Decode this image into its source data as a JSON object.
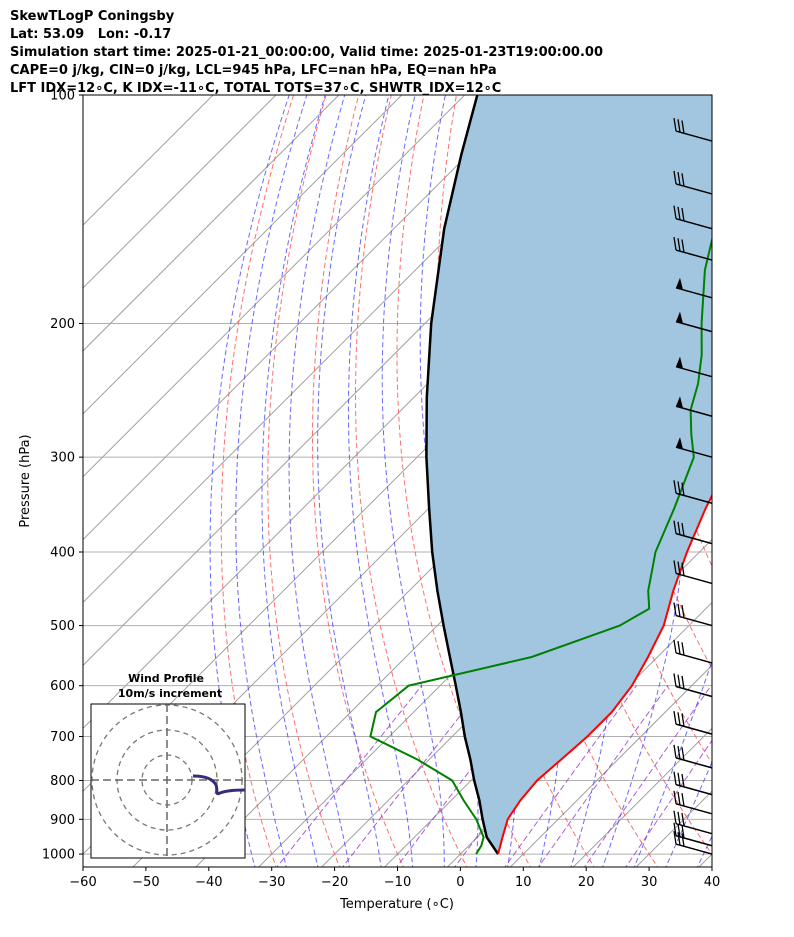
{
  "header": {
    "line1": "SkewTLogP Coningsby",
    "line2": "Lat: 53.09   Lon: -0.17",
    "line3": "Simulation start time: 2025-01-21_00:00:00, Valid time: 2025-01-23T19:00:00.00",
    "line4": "CAPE=0 j/kg, CIN=0 j/kg, LCL=945 hPa, LFC=nan hPa, EQ=nan hPa",
    "line5": "LFT IDX=12∘C, K IDX=-11∘C, TOTAL TOTS=37∘C, SHWTR_IDX=12∘C"
  },
  "chart_data": {
    "type": "line",
    "skew": "skew-T log-p",
    "xlabel": "Temperature (∘C)",
    "ylabel": "Pressure (hPa)",
    "xlim": [
      -60,
      40
    ],
    "ylim": [
      1040,
      100
    ],
    "y_scale": "log",
    "x_ticks": [
      -60,
      -50,
      -40,
      -30,
      -20,
      -10,
      0,
      10,
      20,
      30,
      40
    ],
    "y_ticks": [
      100,
      200,
      300,
      400,
      500,
      600,
      700,
      800,
      900,
      1000
    ],
    "grid": true,
    "colors": {
      "temperature": "#ff0000",
      "dewpoint": "#008000",
      "parcel": "#000000",
      "shade": "#a2c6e0",
      "dry_adiabats": "#ff5555",
      "moist_adiabats": "#4444ff",
      "mixing_ratio": "#9933cc",
      "skew_isotherms": "#a0a0a0"
    },
    "series": [
      {
        "key": "temperature",
        "points": [
          [
            1000,
            6
          ],
          [
            950,
            4
          ],
          [
            900,
            2
          ],
          [
            850,
            1
          ],
          [
            800,
            0.5
          ],
          [
            750,
            1
          ],
          [
            700,
            1.5
          ],
          [
            650,
            1.5
          ],
          [
            600,
            0.5
          ],
          [
            550,
            -1.5
          ],
          [
            500,
            -4
          ],
          [
            450,
            -8
          ],
          [
            400,
            -12
          ],
          [
            350,
            -16
          ],
          [
            300,
            -20
          ],
          [
            280,
            -23
          ],
          [
            260,
            -26
          ],
          [
            240,
            -30
          ],
          [
            220,
            -36
          ],
          [
            200,
            -40
          ],
          [
            180,
            -43
          ],
          [
            160,
            -47
          ],
          [
            140,
            -51
          ],
          [
            120,
            -55
          ],
          [
            100,
            -60
          ]
        ]
      },
      {
        "key": "dewpoint",
        "points": [
          [
            1000,
            2.5
          ],
          [
            975,
            2
          ],
          [
            950,
            1
          ],
          [
            900,
            -3
          ],
          [
            850,
            -8
          ],
          [
            800,
            -13
          ],
          [
            750,
            -22
          ],
          [
            700,
            -33
          ],
          [
            650,
            -36
          ],
          [
            600,
            -35
          ],
          [
            550,
            -20
          ],
          [
            500,
            -11
          ],
          [
            475,
            -9
          ],
          [
            450,
            -12
          ],
          [
            400,
            -17
          ],
          [
            350,
            -21
          ],
          [
            300,
            -26
          ],
          [
            280,
            -30
          ],
          [
            260,
            -34
          ],
          [
            240,
            -37
          ],
          [
            220,
            -41
          ],
          [
            200,
            -46
          ],
          [
            170,
            -54
          ],
          [
            150,
            -59
          ],
          [
            130,
            -63
          ],
          [
            110,
            -68
          ],
          [
            100,
            -71
          ]
        ]
      },
      {
        "key": "parcel",
        "points": [
          [
            1000,
            6
          ],
          [
            950,
            1.5
          ],
          [
            900,
            -2
          ],
          [
            850,
            -5.5
          ],
          [
            800,
            -9.5
          ],
          [
            750,
            -13.5
          ],
          [
            700,
            -18
          ],
          [
            650,
            -22.5
          ],
          [
            600,
            -27.5
          ],
          [
            550,
            -33
          ],
          [
            500,
            -39
          ],
          [
            450,
            -45.5
          ],
          [
            400,
            -52.5
          ],
          [
            350,
            -60
          ],
          [
            300,
            -68.5
          ],
          [
            250,
            -78
          ],
          [
            200,
            -89
          ],
          [
            150,
            -102
          ],
          [
            120,
            -111
          ],
          [
            100,
            -118
          ]
        ]
      }
    ],
    "inset": {
      "title": "Wind Profile",
      "subtitle": "10m/s increment"
    }
  }
}
